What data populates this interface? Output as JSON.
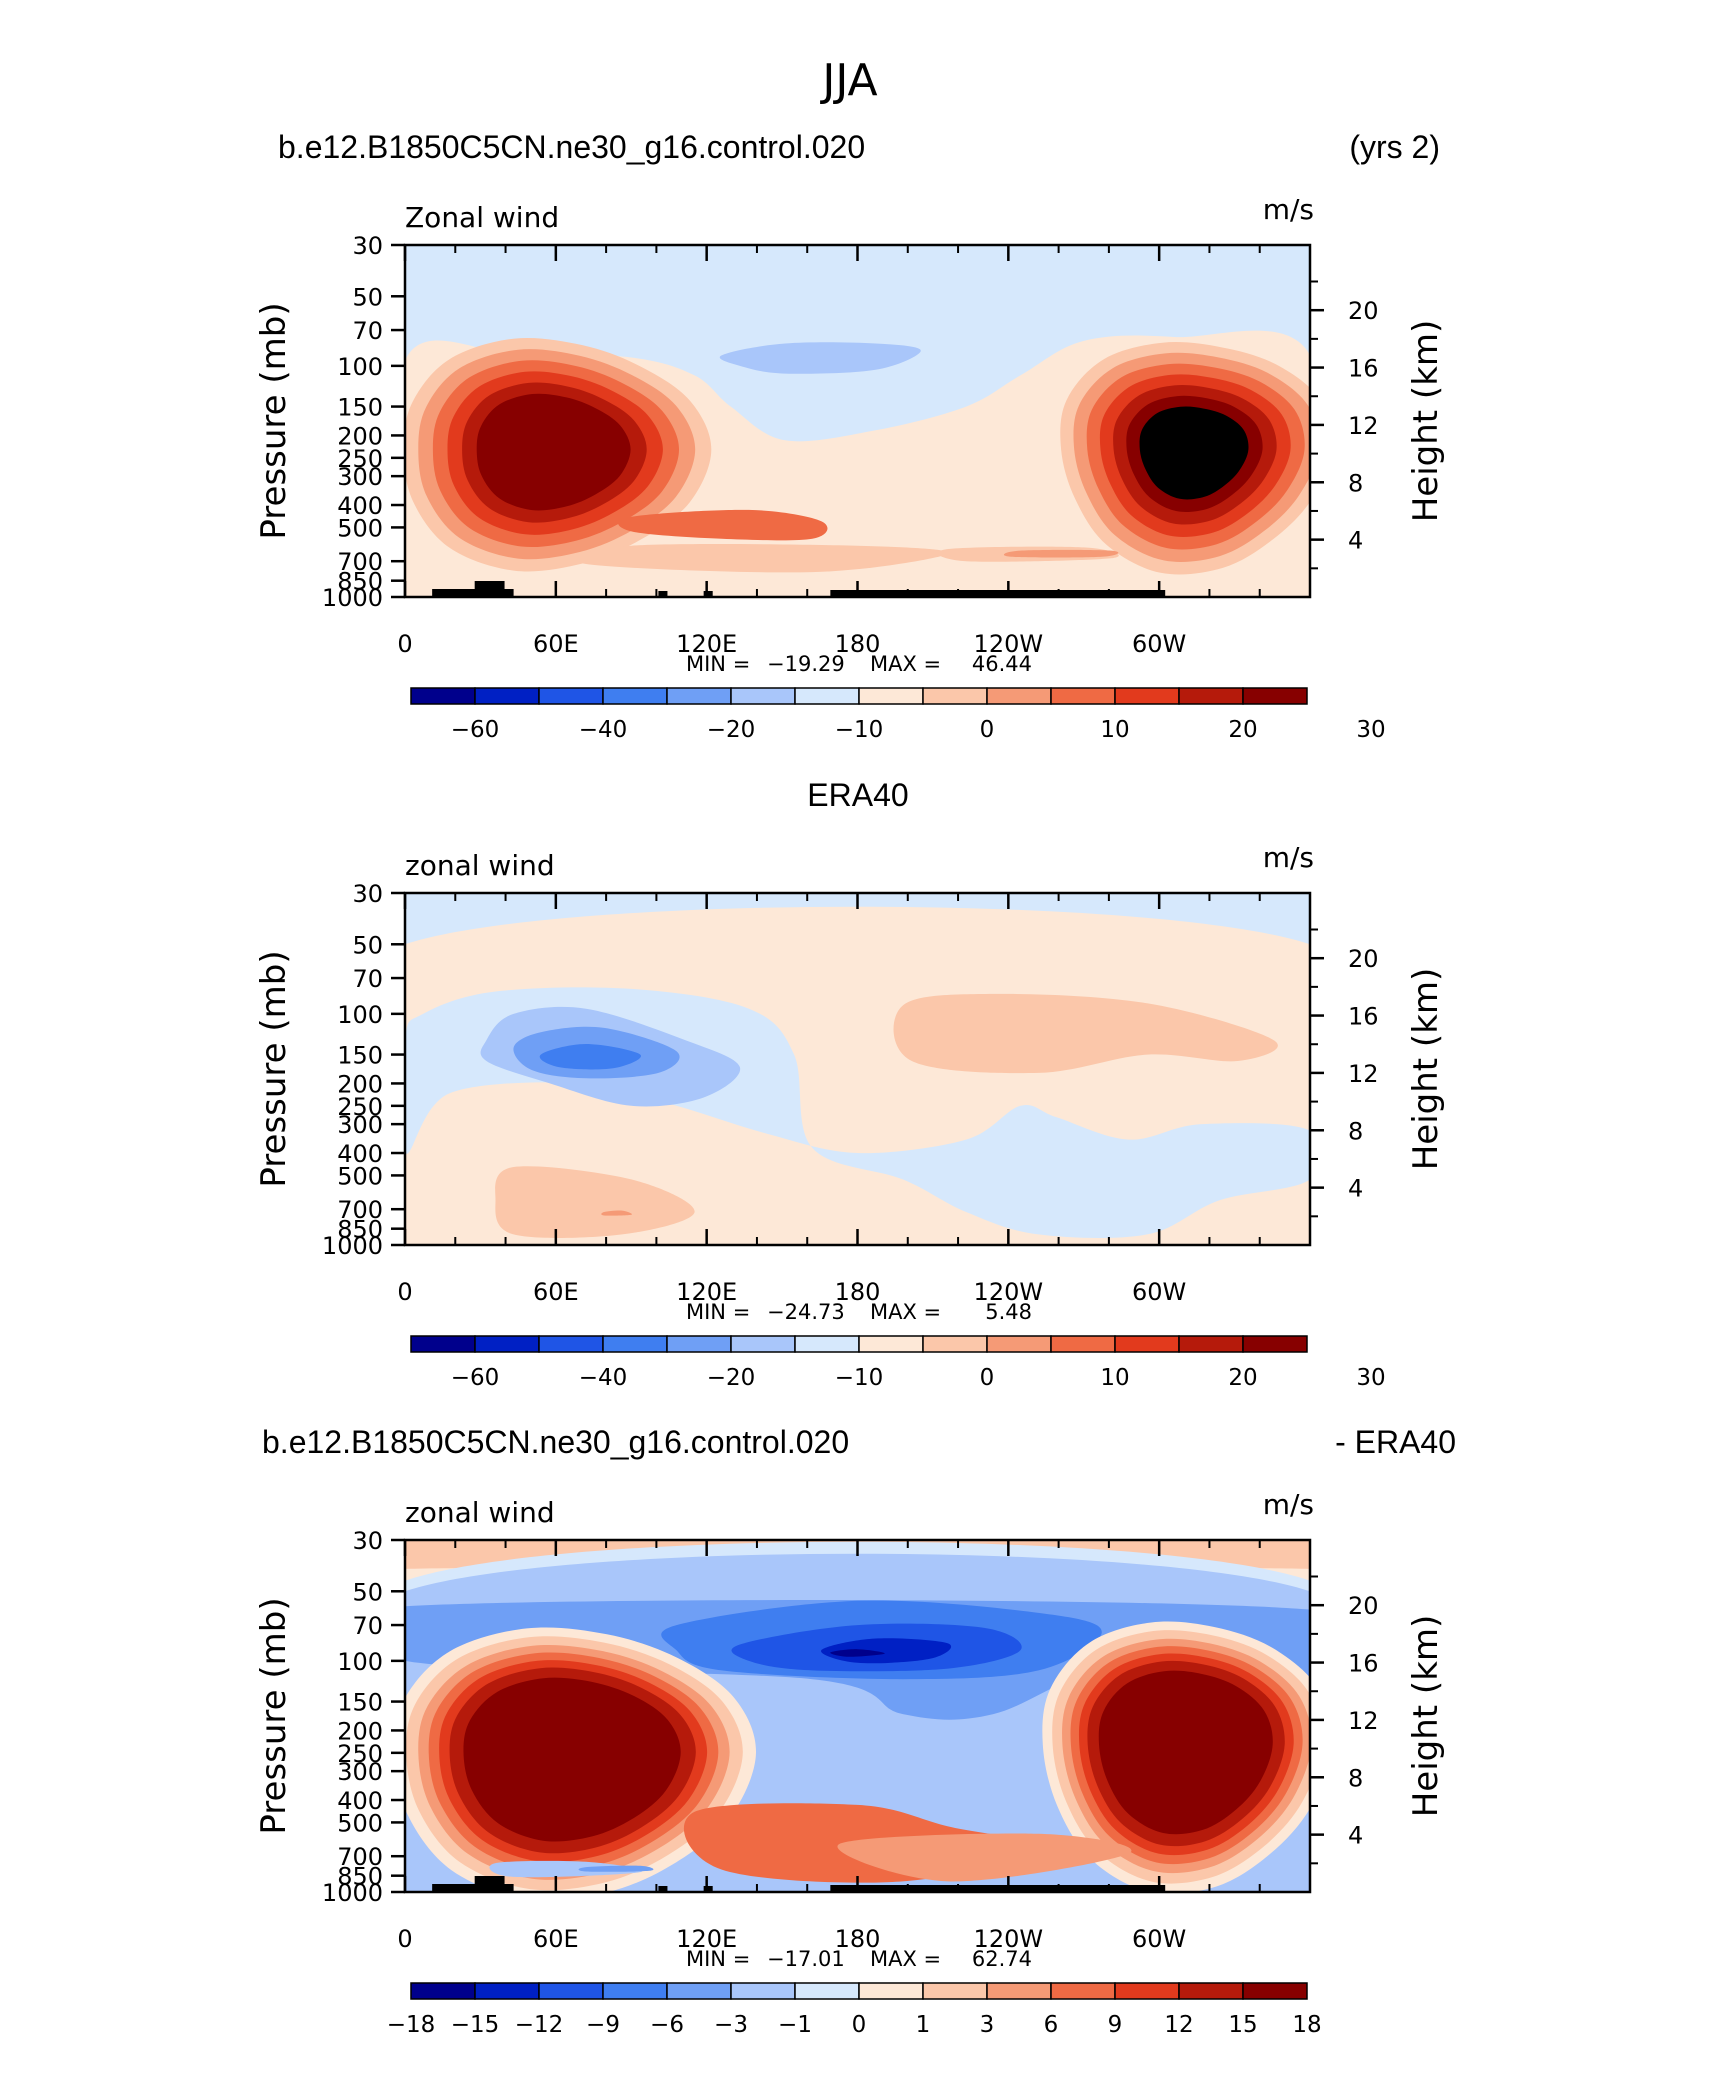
{
  "figure": {
    "title": "JJA"
  },
  "chart_data": [
    {
      "type": "contour",
      "header_left": "b.e12.B1850C5CN.ne30_g16.control.020",
      "header_right": "(yrs 2)",
      "title": "",
      "var_label": "Zonal wind",
      "units": "m/s",
      "ylabel": "Pressure (mb)",
      "ylabel_right": "Height (km)",
      "xlabel": "",
      "x_ticks": [
        "0",
        "60E",
        "120E",
        "180",
        "120W",
        "60W"
      ],
      "y_ticks": [
        "30",
        "50",
        "70",
        "100",
        "150",
        "200",
        "250",
        "300",
        "400",
        "500",
        "700",
        "850",
        "1000"
      ],
      "height_ticks": [
        "20",
        "16",
        "12",
        "8",
        "4"
      ],
      "stats": {
        "min_label": "MIN =",
        "min": "−19.29",
        "max_label": "MAX =",
        "max": "46.44"
      },
      "colorbar_labels": [
        "−60",
        "−40",
        "−20",
        "−10",
        "0",
        "10",
        "20",
        "30"
      ],
      "colors": [
        "#00008c",
        "#0020c4",
        "#1f55e6",
        "#3f7ef0",
        "#6f9ff5",
        "#a9c6fa",
        "#d6e8fc",
        "#fde8d7",
        "#fbc7aa",
        "#f59a76",
        "#ef6a44",
        "#e23a1d",
        "#b51a0b",
        "#870000"
      ]
    },
    {
      "type": "contour",
      "header_left": "",
      "header_right": "",
      "title": "ERA40",
      "var_label": "zonal wind",
      "units": "m/s",
      "ylabel": "Pressure (mb)",
      "ylabel_right": "Height (km)",
      "xlabel": "",
      "x_ticks": [
        "0",
        "60E",
        "120E",
        "180",
        "120W",
        "60W"
      ],
      "y_ticks": [
        "30",
        "50",
        "70",
        "100",
        "150",
        "200",
        "250",
        "300",
        "400",
        "500",
        "700",
        "850",
        "1000"
      ],
      "height_ticks": [
        "20",
        "16",
        "12",
        "8",
        "4"
      ],
      "stats": {
        "min_label": "MIN =",
        "min": "−24.73",
        "max_label": "MAX =",
        "max": "5.48"
      },
      "colorbar_labels": [
        "−60",
        "−40",
        "−20",
        "−10",
        "0",
        "10",
        "20",
        "30"
      ],
      "colors": [
        "#00008c",
        "#0020c4",
        "#1f55e6",
        "#3f7ef0",
        "#6f9ff5",
        "#a9c6fa",
        "#d6e8fc",
        "#fde8d7",
        "#fbc7aa",
        "#f59a76",
        "#ef6a44",
        "#e23a1d",
        "#b51a0b",
        "#870000"
      ]
    },
    {
      "type": "contour",
      "header_left": "b.e12.B1850C5CN.ne30_g16.control.020",
      "header_right": "- ERA40",
      "title": "",
      "var_label": "zonal wind",
      "units": "m/s",
      "ylabel": "Pressure (mb)",
      "ylabel_right": "Height (km)",
      "xlabel": "",
      "x_ticks": [
        "0",
        "60E",
        "120E",
        "180",
        "120W",
        "60W"
      ],
      "y_ticks": [
        "30",
        "50",
        "70",
        "100",
        "150",
        "200",
        "250",
        "300",
        "400",
        "500",
        "700",
        "850",
        "1000"
      ],
      "height_ticks": [
        "20",
        "16",
        "12",
        "8",
        "4"
      ],
      "stats": {
        "min_label": "MIN =",
        "min": "−17.01",
        "max_label": "MAX =",
        "max": "62.74"
      },
      "colorbar_labels": [
        "−18",
        "−15",
        "−12",
        "−9",
        "−6",
        "−3",
        "−1",
        "0",
        "1",
        "3",
        "6",
        "9",
        "12",
        "15",
        "18"
      ],
      "colors": [
        "#00008c",
        "#0020c4",
        "#1f55e6",
        "#3f7ef0",
        "#6f9ff5",
        "#a9c6fa",
        "#d6e8fc",
        "#fde8d7",
        "#fbc7aa",
        "#f59a76",
        "#ef6a44",
        "#e23a1d",
        "#b51a0b",
        "#870000"
      ]
    }
  ]
}
